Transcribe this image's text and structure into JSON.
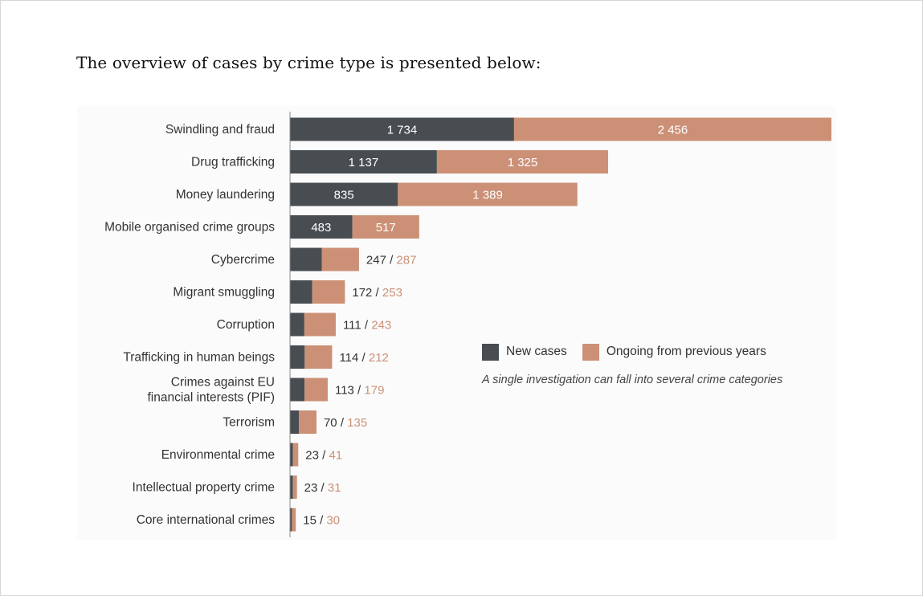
{
  "heading": "The overview of cases by crime type is presented below:",
  "legend": {
    "new_label": "New cases",
    "ongoing_label": "Ongoing from previous years"
  },
  "note": "A single investigation can fall into several crime categories",
  "colors": {
    "new": "#484d52",
    "ongoing": "#cc9076",
    "label_text": "#333333",
    "inside_text": "#ffffff",
    "axis": "#8a8a8a"
  },
  "chart_data": {
    "type": "bar",
    "orientation": "horizontal",
    "stacked": true,
    "title": "",
    "xlabel": "",
    "ylabel": "",
    "categories": [
      [
        "Swindling and fraud"
      ],
      [
        "Drug trafficking"
      ],
      [
        "Money laundering"
      ],
      [
        "Mobile organised crime groups"
      ],
      [
        "Cybercrime"
      ],
      [
        "Migrant smuggling"
      ],
      [
        "Corruption"
      ],
      [
        "Trafficking in human beings"
      ],
      [
        "Crimes against EU",
        "financial interests (PIF)"
      ],
      [
        "Terrorism"
      ],
      [
        "Environmental crime"
      ],
      [
        "Intellectual property crime"
      ],
      [
        "Core international crimes"
      ]
    ],
    "series": [
      {
        "name": "New cases",
        "values": [
          1734,
          1137,
          835,
          483,
          247,
          172,
          111,
          114,
          113,
          70,
          23,
          23,
          15
        ],
        "labels": [
          "1 734",
          "1 137",
          "835",
          "483",
          "247",
          "172",
          "111",
          "114",
          "113",
          "70",
          "23",
          "23",
          "15"
        ]
      },
      {
        "name": "Ongoing from previous years",
        "values": [
          2456,
          1325,
          1389,
          517,
          287,
          253,
          243,
          212,
          179,
          135,
          41,
          31,
          30
        ],
        "labels": [
          "2 456",
          "1 325",
          "1 389",
          "517",
          "287",
          "253",
          "243",
          "212",
          "179",
          "135",
          "41",
          "31",
          "30"
        ]
      }
    ],
    "label_inside_count": 4,
    "outside_separator": " / ",
    "xlim": [
      0,
      4190
    ],
    "grid": false,
    "legend_position": "right"
  }
}
